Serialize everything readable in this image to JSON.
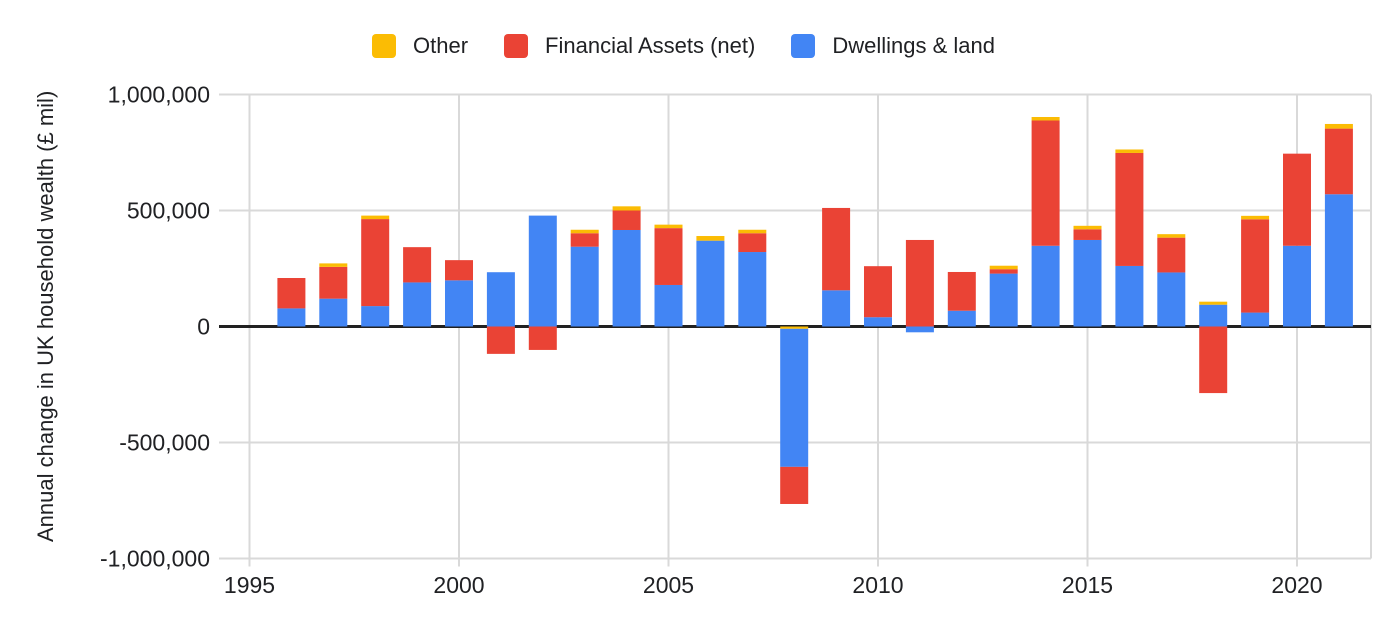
{
  "colors": {
    "background": "#ffffff",
    "grid_line": "#d9d9d9",
    "zero_line": "#212121",
    "text": "#202124",
    "other": "#FBBC04",
    "financial": "#EA4335",
    "dwellings": "#4285F4"
  },
  "legend": {
    "items": [
      {
        "label": "Other",
        "color": "#FBBC04"
      },
      {
        "label": "Financial Assets (net)",
        "color": "#EA4335"
      },
      {
        "label": "Dwellings & land",
        "color": "#4285F4"
      }
    ]
  },
  "y_axis": {
    "title": "Annual change in UK household wealth (£ mil)",
    "ticks": [
      {
        "label": "1,000,000",
        "value": 1000000
      },
      {
        "label": "500,000",
        "value": 500000
      },
      {
        "label": "0",
        "value": 0
      },
      {
        "label": "-500,000",
        "value": -500000
      },
      {
        "label": "-1,000,000",
        "value": -1000000
      }
    ]
  },
  "x_axis": {
    "ticks": [
      {
        "label": "1995",
        "value": 1995
      },
      {
        "label": "2000",
        "value": 2000
      },
      {
        "label": "2005",
        "value": 2005
      },
      {
        "label": "2010",
        "value": 2010
      },
      {
        "label": "2015",
        "value": 2015
      },
      {
        "label": "2020",
        "value": 2020
      }
    ]
  },
  "chart_data": {
    "type": "bar",
    "stacked": true,
    "title": "",
    "xlabel": "",
    "ylabel": "Annual change in UK household wealth (£ mil)",
    "ylim": [
      -1000000,
      1000000
    ],
    "xlim": [
      1995,
      2022
    ],
    "grid": true,
    "legend_position": "top",
    "categories": [
      1996,
      1997,
      1998,
      1999,
      2000,
      2001,
      2002,
      2003,
      2004,
      2005,
      2006,
      2007,
      2008,
      2009,
      2010,
      2011,
      2012,
      2013,
      2014,
      2015,
      2016,
      2017,
      2018,
      2019,
      2020,
      2021
    ],
    "series": [
      {
        "name": "Other",
        "color": "#FBBC04",
        "values": [
          0,
          15000,
          15000,
          0,
          0,
          0,
          0,
          15000,
          18000,
          15000,
          20000,
          15000,
          -10000,
          0,
          0,
          0,
          0,
          15000,
          15000,
          15000,
          15000,
          15000,
          13000,
          15000,
          0,
          20000
        ]
      },
      {
        "name": "Financial Assets (net)",
        "color": "#EA4335",
        "values": [
          131000,
          137000,
          375000,
          152000,
          87000,
          -118000,
          -101000,
          58000,
          84000,
          245000,
          0,
          81000,
          -160000,
          355000,
          220000,
          373000,
          167000,
          19000,
          540000,
          46000,
          487000,
          150000,
          -287000,
          402000,
          397000,
          283000
        ]
      },
      {
        "name": "Dwellings & land",
        "color": "#4285F4",
        "values": [
          78000,
          120000,
          88000,
          190000,
          199000,
          234000,
          478000,
          344000,
          416000,
          179000,
          370000,
          321000,
          -595000,
          156000,
          40000,
          -25000,
          68000,
          228000,
          348000,
          373000,
          261000,
          233000,
          94000,
          60000,
          348000,
          570000
        ]
      }
    ],
    "stack_order_positive": [
      "Dwellings & land",
      "Financial Assets (net)",
      "Other"
    ],
    "stack_order_negative": [
      "Other",
      "Dwellings & land",
      "Financial Assets (net)"
    ]
  }
}
